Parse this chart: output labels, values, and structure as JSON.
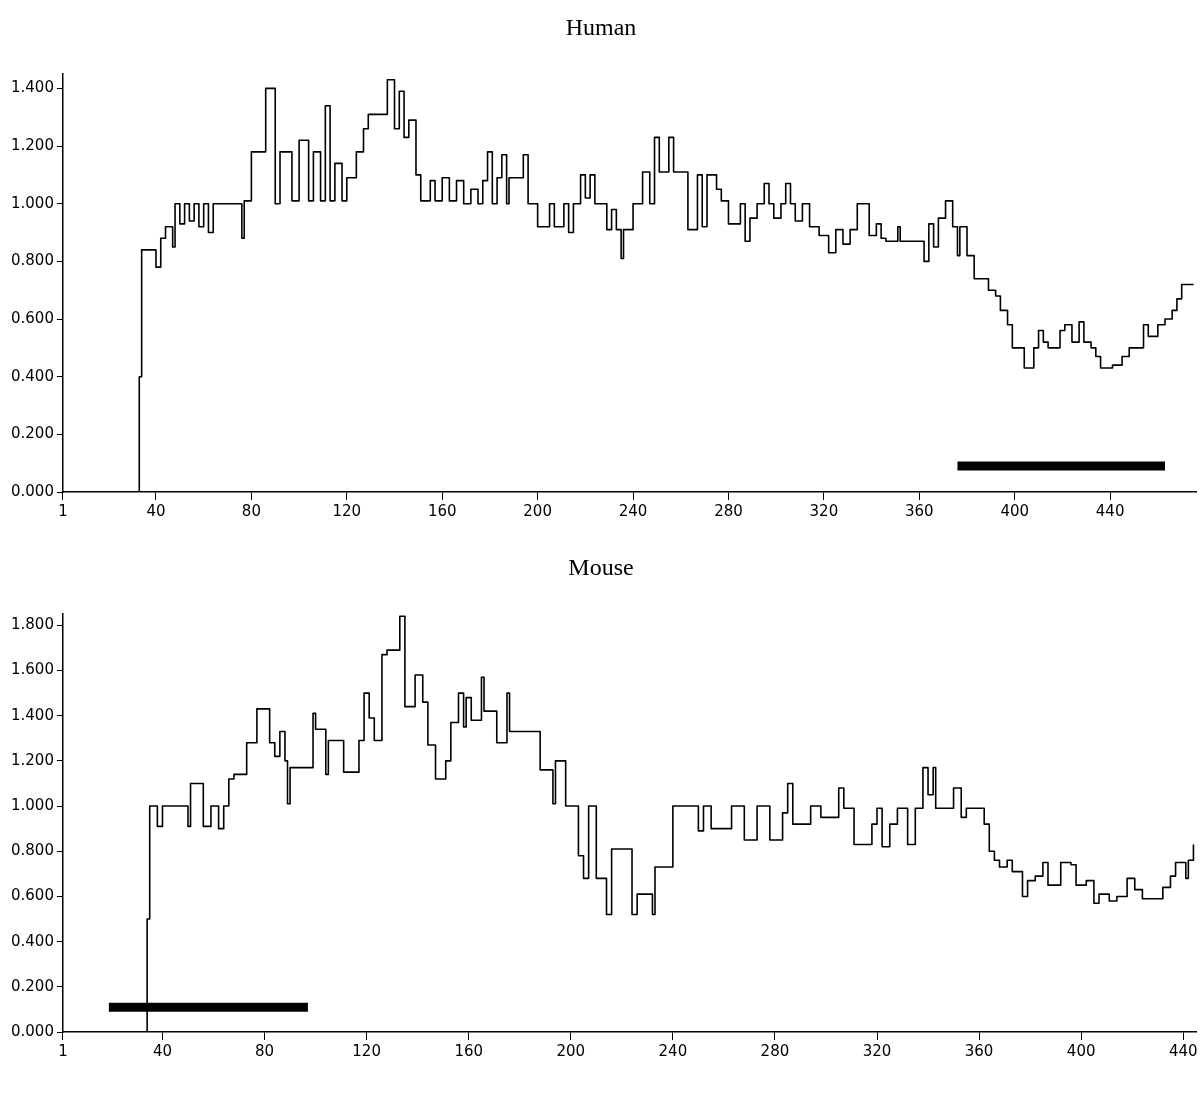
{
  "chart_data": [
    {
      "type": "step",
      "title": "Human",
      "marker": "none",
      "grid": false,
      "legend": false,
      "xlim": [
        1,
        476
      ],
      "xticks": [
        1,
        40,
        80,
        120,
        160,
        200,
        240,
        280,
        320,
        360,
        400,
        440
      ],
      "ylim": [
        0,
        1.45
      ],
      "yticks": [
        {
          "value": 0,
          "label": "0.000"
        },
        {
          "value": 0.2,
          "label": "0.200"
        },
        {
          "value": 0.4,
          "label": "0.400"
        },
        {
          "value": 0.6,
          "label": "0.600"
        },
        {
          "value": 0.8,
          "label": "0.800"
        },
        {
          "value": 1.0,
          "label": "1.000"
        },
        {
          "value": 1.2,
          "label": "1.200"
        },
        {
          "value": 1.4,
          "label": "1.400"
        }
      ],
      "series": [
        {
          "color": "#000000",
          "x": [
            1,
            33,
            34,
            40,
            42,
            44,
            47,
            48,
            50,
            52,
            54,
            56,
            58,
            60,
            62,
            64,
            76,
            77,
            80,
            86,
            90,
            92,
            97,
            100,
            104,
            106,
            109,
            111,
            113,
            115,
            118,
            120,
            124,
            127,
            129,
            137,
            140,
            142,
            144,
            146,
            149,
            151,
            155,
            157,
            160,
            163,
            166,
            169,
            172,
            175,
            177,
            179,
            181,
            183,
            185,
            187,
            188,
            194,
            196,
            200,
            205,
            207,
            211,
            213,
            215,
            218,
            220,
            222,
            224,
            229,
            231,
            233,
            235,
            236,
            240,
            244,
            247,
            249,
            251,
            255,
            257,
            263,
            267,
            269,
            271,
            275,
            277,
            280,
            285,
            287,
            289,
            292,
            295,
            297,
            299,
            302,
            304,
            306,
            308,
            311,
            314,
            318,
            322,
            325,
            328,
            331,
            334,
            339,
            342,
            344,
            346,
            351,
            352,
            362,
            364,
            366,
            368,
            371,
            374,
            376,
            377,
            380,
            383,
            389,
            392,
            394,
            397,
            399,
            404,
            408,
            410,
            412,
            414,
            419,
            421,
            424,
            427,
            429,
            432,
            434,
            436,
            441,
            445,
            448,
            454,
            456,
            460,
            463,
            466,
            468,
            470,
            475
          ],
          "values": [
            0,
            0.4,
            0.84,
            0.78,
            0.88,
            0.92,
            0.85,
            1.0,
            0.93,
            1.0,
            0.94,
            1.0,
            0.92,
            1.0,
            0.9,
            1.0,
            0.88,
            1.01,
            1.18,
            1.4,
            1.0,
            1.18,
            1.01,
            1.22,
            1.01,
            1.18,
            1.01,
            1.34,
            1.01,
            1.14,
            1.01,
            1.09,
            1.18,
            1.26,
            1.31,
            1.43,
            1.26,
            1.39,
            1.23,
            1.29,
            1.1,
            1.01,
            1.08,
            1.01,
            1.09,
            1.01,
            1.08,
            1.0,
            1.05,
            1.0,
            1.08,
            1.18,
            1.0,
            1.09,
            1.17,
            1.0,
            1.09,
            1.17,
            1.0,
            0.92,
            1.0,
            0.92,
            1.0,
            0.9,
            1.0,
            1.1,
            1.02,
            1.1,
            1.0,
            0.91,
            0.98,
            0.91,
            0.81,
            0.91,
            1.0,
            1.11,
            1.0,
            1.23,
            1.11,
            1.23,
            1.11,
            0.91,
            1.1,
            0.92,
            1.1,
            1.05,
            1.01,
            0.93,
            1.0,
            0.87,
            0.95,
            1.0,
            1.07,
            1.0,
            0.95,
            1.0,
            1.07,
            1.0,
            0.94,
            1.0,
            0.92,
            0.89,
            0.83,
            0.91,
            0.86,
            0.91,
            1.0,
            0.89,
            0.93,
            0.88,
            0.87,
            0.92,
            0.87,
            0.8,
            0.93,
            0.85,
            0.95,
            1.01,
            0.92,
            0.82,
            0.92,
            0.82,
            0.74,
            0.7,
            0.68,
            0.63,
            0.58,
            0.5,
            0.43,
            0.5,
            0.56,
            0.52,
            0.5,
            0.56,
            0.58,
            0.52,
            0.59,
            0.52,
            0.5,
            0.47,
            0.43,
            0.44,
            0.47,
            0.5,
            0.58,
            0.54,
            0.58,
            0.6,
            0.63,
            0.67,
            0.72,
            0.72
          ]
        },
        {
          "type": "line",
          "color": "#000000",
          "x": [
            376,
            463
          ],
          "values": [
            0.09,
            0.09
          ]
        }
      ]
    },
    {
      "type": "step",
      "title": "Mouse",
      "marker": "none",
      "grid": false,
      "legend": false,
      "xlim": [
        1,
        445
      ],
      "xticks": [
        1,
        40,
        80,
        120,
        160,
        200,
        240,
        280,
        320,
        360,
        400,
        440
      ],
      "ylim": [
        0,
        1.85
      ],
      "yticks": [
        {
          "value": 0,
          "label": "0.000"
        },
        {
          "value": 0.2,
          "label": "0.200"
        },
        {
          "value": 0.4,
          "label": "0.400"
        },
        {
          "value": 0.6,
          "label": "0.600"
        },
        {
          "value": 0.8,
          "label": "0.800"
        },
        {
          "value": 1.0,
          "label": "1.000"
        },
        {
          "value": 1.2,
          "label": "1.200"
        },
        {
          "value": 1.4,
          "label": "1.400"
        },
        {
          "value": 1.6,
          "label": "1.600"
        },
        {
          "value": 1.8,
          "label": "1.800"
        }
      ],
      "series": [
        {
          "color": "#000000",
          "x": [
            1,
            34,
            35,
            38,
            40,
            50,
            51,
            56,
            59,
            62,
            64,
            66,
            68,
            73,
            77,
            82,
            84,
            86,
            88,
            89,
            90,
            99,
            100,
            104,
            105,
            111,
            117,
            119,
            121,
            123,
            126,
            128,
            133,
            135,
            139,
            142,
            144,
            147,
            151,
            153,
            156,
            158,
            159,
            161,
            165,
            166,
            171,
            175,
            176,
            188,
            193,
            194,
            198,
            203,
            205,
            207,
            210,
            214,
            216,
            224,
            226,
            232,
            233,
            240,
            250,
            252,
            255,
            263,
            268,
            273,
            278,
            283,
            285,
            287,
            294,
            298,
            305,
            307,
            311,
            318,
            320,
            322,
            325,
            328,
            332,
            335,
            338,
            340,
            342,
            343,
            350,
            353,
            355,
            362,
            364,
            366,
            368,
            371,
            373,
            377,
            379,
            382,
            385,
            387,
            392,
            396,
            398,
            402,
            405,
            407,
            411,
            414,
            418,
            421,
            424,
            432,
            435,
            437,
            441,
            442,
            444
          ],
          "values": [
            0,
            0.5,
            1.0,
            0.91,
            1.0,
            0.91,
            1.1,
            0.91,
            1.0,
            0.9,
            1.0,
            1.12,
            1.14,
            1.28,
            1.43,
            1.28,
            1.22,
            1.33,
            1.2,
            1.01,
            1.17,
            1.41,
            1.34,
            1.14,
            1.29,
            1.15,
            1.29,
            1.5,
            1.39,
            1.29,
            1.67,
            1.69,
            1.84,
            1.44,
            1.58,
            1.46,
            1.27,
            1.12,
            1.2,
            1.37,
            1.5,
            1.35,
            1.48,
            1.38,
            1.57,
            1.42,
            1.28,
            1.5,
            1.33,
            1.16,
            1.01,
            1.2,
            1.0,
            0.78,
            0.68,
            1.0,
            0.68,
            0.52,
            0.81,
            0.52,
            0.61,
            0.52,
            0.73,
            1.0,
            0.89,
            1.0,
            0.9,
            1.0,
            0.85,
            1.0,
            0.85,
            0.97,
            1.1,
            0.92,
            1.0,
            0.95,
            1.08,
            0.99,
            0.83,
            0.92,
            0.99,
            0.82,
            0.92,
            0.99,
            0.83,
            0.99,
            1.17,
            1.05,
            1.17,
            0.99,
            1.08,
            0.95,
            0.99,
            0.92,
            0.8,
            0.76,
            0.73,
            0.76,
            0.71,
            0.6,
            0.67,
            0.69,
            0.75,
            0.65,
            0.75,
            0.74,
            0.65,
            0.67,
            0.57,
            0.61,
            0.58,
            0.6,
            0.68,
            0.63,
            0.59,
            0.64,
            0.69,
            0.75,
            0.68,
            0.76,
            0.83
          ]
        },
        {
          "type": "line",
          "color": "#000000",
          "x": [
            19,
            97
          ],
          "values": [
            0.11,
            0.11
          ]
        }
      ]
    }
  ]
}
